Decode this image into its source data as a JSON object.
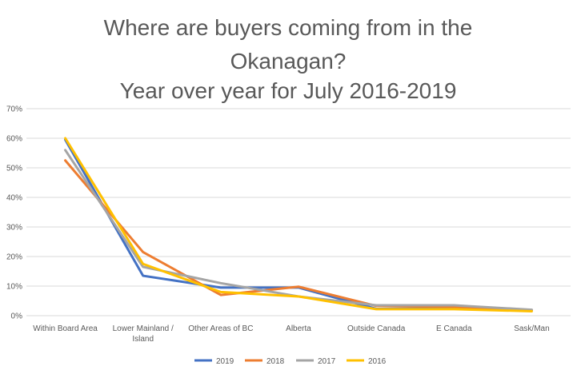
{
  "chart_data": {
    "type": "line",
    "title": [
      "Where are buyers coming from in the",
      "Okanagan?",
      "Year over year for July 2016-2019"
    ],
    "xlabel": "",
    "ylabel": "",
    "categories": [
      [
        "Within Board Area"
      ],
      [
        "Lower Mainland /",
        "Island"
      ],
      [
        "Other Areas of BC"
      ],
      [
        "Alberta"
      ],
      [
        "Outside Canada"
      ],
      [
        "E Canada"
      ],
      [
        "Sask/Man"
      ]
    ],
    "ylim": [
      0,
      70
    ],
    "ytick_labels": [
      "0%",
      "10%",
      "20%",
      "30%",
      "40%",
      "50%",
      "60%",
      "70%"
    ],
    "grid": true,
    "legend_position": "bottom",
    "series": [
      {
        "name": "2019",
        "color": "#4472c4",
        "values": [
          59.5,
          13.5,
          9.5,
          9.5,
          2.3,
          2.5,
          1.8
        ]
      },
      {
        "name": "2018",
        "color": "#ed7d31",
        "values": [
          52.5,
          21.5,
          7.0,
          9.8,
          3.3,
          3.0,
          1.9
        ]
      },
      {
        "name": "2017",
        "color": "#a5a5a5",
        "values": [
          56.0,
          16.5,
          11.0,
          6.5,
          3.5,
          3.5,
          2.0
        ]
      },
      {
        "name": "2016",
        "color": "#ffc000",
        "values": [
          60.0,
          17.5,
          8.0,
          6.5,
          2.2,
          2.2,
          1.5
        ]
      }
    ]
  }
}
